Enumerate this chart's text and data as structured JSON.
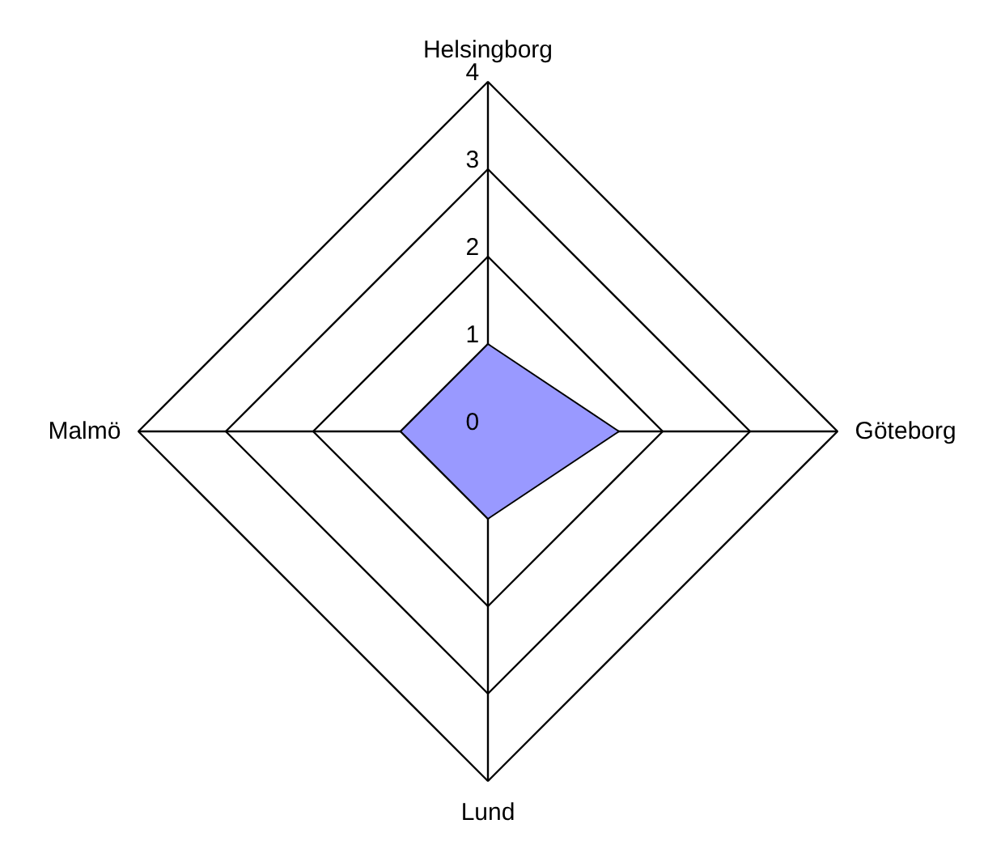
{
  "chart_data": {
    "type": "radar",
    "categories": [
      "Helsingborg",
      "Göteborg",
      "Lund",
      "Malmö"
    ],
    "series": [
      {
        "color": "#9999ff",
        "values": [
          1,
          1.5,
          1,
          1
        ]
      }
    ],
    "ylim": [
      0,
      4
    ],
    "yticks": [
      0,
      1,
      2,
      3,
      4
    ],
    "grid": true
  }
}
